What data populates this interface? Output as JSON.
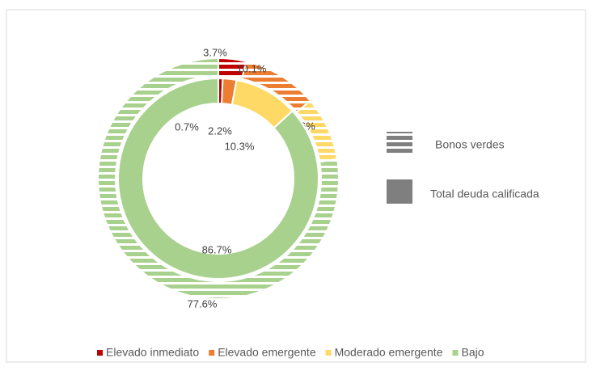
{
  "chart_data": {
    "type": "donut",
    "categories": [
      "Elevado inmediato",
      "Elevado emergente",
      "Moderado emergente",
      "Bajo"
    ],
    "colors": [
      "#c00000",
      "#ed7d31",
      "#ffd966",
      "#a9d18e"
    ],
    "series": [
      {
        "name": "Bonos verdes",
        "color": "#7f7f7f",
        "pattern": "horizontal-stripes",
        "values": [
          3.7,
          10.1,
          8.6,
          77.6
        ],
        "value_labels": [
          "3.7%",
          "10.1%",
          "8.6%",
          "77.6%"
        ]
      },
      {
        "name": "Total deuda calificada",
        "color": "#7f7f7f",
        "values": [
          0.7,
          2.2,
          10.3,
          86.7
        ],
        "value_labels": [
          "0.7%",
          "2.2%",
          "10.3%",
          "86.7%"
        ]
      }
    ]
  }
}
